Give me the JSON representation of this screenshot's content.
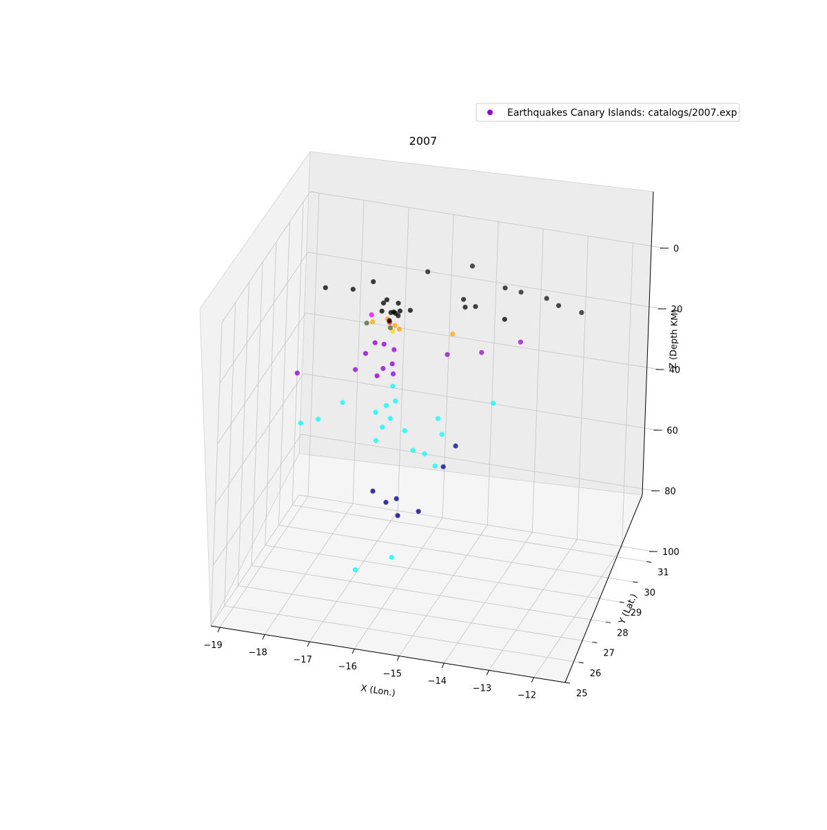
{
  "chart_data": {
    "type": "scatter",
    "projection": "3d",
    "title": "2007",
    "xlabel": "X (Lon.)",
    "ylabel": "Y (Lat.)",
    "zlabel": "Z (Depth KM)",
    "xlim": [
      -19.2,
      -11.3
    ],
    "ylim": [
      25,
      31.5
    ],
    "zlim": [
      -100,
      0
    ],
    "x_ticks": [
      "−19",
      "−18",
      "−17",
      "−16",
      "−15",
      "−14",
      "−13",
      "−12"
    ],
    "y_ticks": [
      "25",
      "26",
      "27",
      "28",
      "29",
      "30",
      "31"
    ],
    "z_ticks": [
      "0",
      "20",
      "40",
      "60",
      "80",
      "100"
    ],
    "legend": {
      "label": "Earthquakes Canary Islands: catalogs/2007.exp",
      "marker_color": "#9400d3",
      "location": "upper right"
    },
    "depth_colors": {
      "shallow": "#000000",
      "mid_shallow": "#ffa500",
      "intermediate": "#9400d3",
      "deep": "#00ffff",
      "very_deep": "#00008b",
      "other": [
        "#ff0000",
        "#ff00ff",
        "#ffd700",
        "#556b2f"
      ]
    },
    "points": [
      {
        "x": -16.5,
        "y": 28.3,
        "z": -8,
        "color": "#000000"
      },
      {
        "x": -16.6,
        "y": 28.4,
        "z": -10,
        "color": "#000000"
      },
      {
        "x": -16.3,
        "y": 28.5,
        "z": -10,
        "color": "#000000"
      },
      {
        "x": -16.4,
        "y": 28.3,
        "z": -12,
        "color": "#000000"
      },
      {
        "x": -16.2,
        "y": 28.3,
        "z": -11,
        "color": "#000000"
      },
      {
        "x": -16.35,
        "y": 28.35,
        "z": -12,
        "color": "#000000"
      },
      {
        "x": -16.25,
        "y": 28.35,
        "z": -13,
        "color": "#000000"
      },
      {
        "x": -16.3,
        "y": 28.3,
        "z": -12,
        "color": "#000000"
      },
      {
        "x": -16.0,
        "y": 28.4,
        "z": -11,
        "color": "#000000"
      },
      {
        "x": -16.9,
        "y": 28.6,
        "z": -5,
        "color": "#000000"
      },
      {
        "x": -17.4,
        "y": 28.8,
        "z": -10,
        "color": "#000000"
      },
      {
        "x": -17.9,
        "y": 28.4,
        "z": -8,
        "color": "#000000"
      },
      {
        "x": -15.9,
        "y": 29.3,
        "z": -4,
        "color": "#000000"
      },
      {
        "x": -15.0,
        "y": 29.6,
        "z": -2,
        "color": "#000000"
      },
      {
        "x": -14.2,
        "y": 29.4,
        "z": -6,
        "color": "#000000"
      },
      {
        "x": -13.9,
        "y": 29.6,
        "z": -8,
        "color": "#000000"
      },
      {
        "x": -13.3,
        "y": 29.5,
        "z": -8,
        "color": "#000000"
      },
      {
        "x": -13.0,
        "y": 29.4,
        "z": -9,
        "color": "#000000"
      },
      {
        "x": -12.6,
        "y": 29.8,
        "z": -13,
        "color": "#000000"
      },
      {
        "x": -14.9,
        "y": 28.8,
        "z": -10,
        "color": "#000000"
      },
      {
        "x": -14.7,
        "y": 28.9,
        "z": -10,
        "color": "#000000"
      },
      {
        "x": -15.0,
        "y": 29.0,
        "z": -9,
        "color": "#000000"
      },
      {
        "x": -13.9,
        "y": 28.4,
        "z": -9,
        "color": "#000000"
      },
      {
        "x": -16.6,
        "y": 28.3,
        "z": -12,
        "color": "#000000"
      },
      {
        "x": -16.4,
        "y": 28.2,
        "z": -14,
        "color": "#000000"
      },
      {
        "x": -16.5,
        "y": 28.4,
        "z": -15,
        "color": "#ffa500"
      },
      {
        "x": -16.3,
        "y": 28.3,
        "z": -16,
        "color": "#ffa500"
      },
      {
        "x": -16.2,
        "y": 28.3,
        "z": -17,
        "color": "#ffa500"
      },
      {
        "x": -16.8,
        "y": 28.3,
        "z": -16,
        "color": "#ffa500"
      },
      {
        "x": -15.1,
        "y": 28.6,
        "z": -18,
        "color": "#ffa500"
      },
      {
        "x": -16.35,
        "y": 28.3,
        "z": -18,
        "color": "#ffd700"
      },
      {
        "x": -16.45,
        "y": 28.4,
        "z": -16,
        "color": "#ff0000"
      },
      {
        "x": -16.8,
        "y": 28.2,
        "z": -13,
        "color": "#ff00ff"
      },
      {
        "x": -16.9,
        "y": 28.2,
        "z": -16,
        "color": "#556b2f"
      },
      {
        "x": -16.4,
        "y": 28.3,
        "z": -17,
        "color": "#556b2f"
      },
      {
        "x": -16.7,
        "y": 28.2,
        "z": -22,
        "color": "#9400d3"
      },
      {
        "x": -16.5,
        "y": 28.2,
        "z": -22,
        "color": "#9400d3"
      },
      {
        "x": -16.3,
        "y": 28.3,
        "z": -24,
        "color": "#9400d3"
      },
      {
        "x": -16.3,
        "y": 28.2,
        "z": -28,
        "color": "#9400d3"
      },
      {
        "x": -16.5,
        "y": 28.2,
        "z": -30,
        "color": "#9400d3"
      },
      {
        "x": -16.6,
        "y": 28.1,
        "z": -32,
        "color": "#9400d3"
      },
      {
        "x": -16.3,
        "y": 28.3,
        "z": -32,
        "color": "#9400d3"
      },
      {
        "x": -16.9,
        "y": 28.2,
        "z": -26,
        "color": "#9400d3"
      },
      {
        "x": -18.4,
        "y": 28.2,
        "z": -36,
        "color": "#9400d3"
      },
      {
        "x": -17.2,
        "y": 28.5,
        "z": -34,
        "color": "#9400d3"
      },
      {
        "x": -15.2,
        "y": 28.6,
        "z": -25,
        "color": "#9400d3"
      },
      {
        "x": -14.5,
        "y": 28.8,
        "z": -24,
        "color": "#9400d3"
      },
      {
        "x": -13.7,
        "y": 29.0,
        "z": -20,
        "color": "#9400d3"
      },
      {
        "x": -16.3,
        "y": 28.3,
        "z": -36,
        "color": "#00ffff"
      },
      {
        "x": -16.2,
        "y": 28.2,
        "z": -40,
        "color": "#00ffff"
      },
      {
        "x": -16.4,
        "y": 28.2,
        "z": -42,
        "color": "#00ffff"
      },
      {
        "x": -16.6,
        "y": 28.1,
        "z": -44,
        "color": "#00ffff"
      },
      {
        "x": -16.3,
        "y": 28.2,
        "z": -46,
        "color": "#00ffff"
      },
      {
        "x": -16.5,
        "y": 28.3,
        "z": -50,
        "color": "#00ffff"
      },
      {
        "x": -16.0,
        "y": 28.3,
        "z": -50,
        "color": "#00ffff"
      },
      {
        "x": -15.3,
        "y": 28.4,
        "z": -45,
        "color": "#00ffff"
      },
      {
        "x": -15.2,
        "y": 28.4,
        "z": -50,
        "color": "#00ffff"
      },
      {
        "x": -14.2,
        "y": 28.8,
        "z": -40,
        "color": "#00ffff"
      },
      {
        "x": -17.4,
        "y": 28.3,
        "z": -44,
        "color": "#00ffff"
      },
      {
        "x": -18.2,
        "y": 27.9,
        "z": -50,
        "color": "#00ffff"
      },
      {
        "x": -17.9,
        "y": 28.2,
        "z": -50,
        "color": "#00ffff"
      },
      {
        "x": -16.6,
        "y": 28.2,
        "z": -54,
        "color": "#00ffff"
      },
      {
        "x": -15.8,
        "y": 28.3,
        "z": -56,
        "color": "#00ffff"
      },
      {
        "x": -15.3,
        "y": 28.3,
        "z": -60,
        "color": "#00ffff"
      },
      {
        "x": -15.6,
        "y": 28.5,
        "z": -58,
        "color": "#00ffff"
      },
      {
        "x": -16.1,
        "y": 28.0,
        "z": -90,
        "color": "#00ffff"
      },
      {
        "x": -16.9,
        "y": 28.0,
        "z": -96,
        "color": "#00ffff"
      },
      {
        "x": -15.0,
        "y": 28.8,
        "z": -56,
        "color": "#00008b"
      },
      {
        "x": -15.2,
        "y": 28.6,
        "z": -62,
        "color": "#00008b"
      },
      {
        "x": -15.6,
        "y": 28.2,
        "z": -75,
        "color": "#00008b"
      },
      {
        "x": -16.1,
        "y": 28.2,
        "z": -72,
        "color": "#00008b"
      },
      {
        "x": -16.3,
        "y": 28.1,
        "z": -73,
        "color": "#00008b"
      },
      {
        "x": -16.0,
        "y": 28.0,
        "z": -76,
        "color": "#00008b"
      },
      {
        "x": -16.6,
        "y": 28.1,
        "z": -70,
        "color": "#00008b"
      }
    ]
  }
}
